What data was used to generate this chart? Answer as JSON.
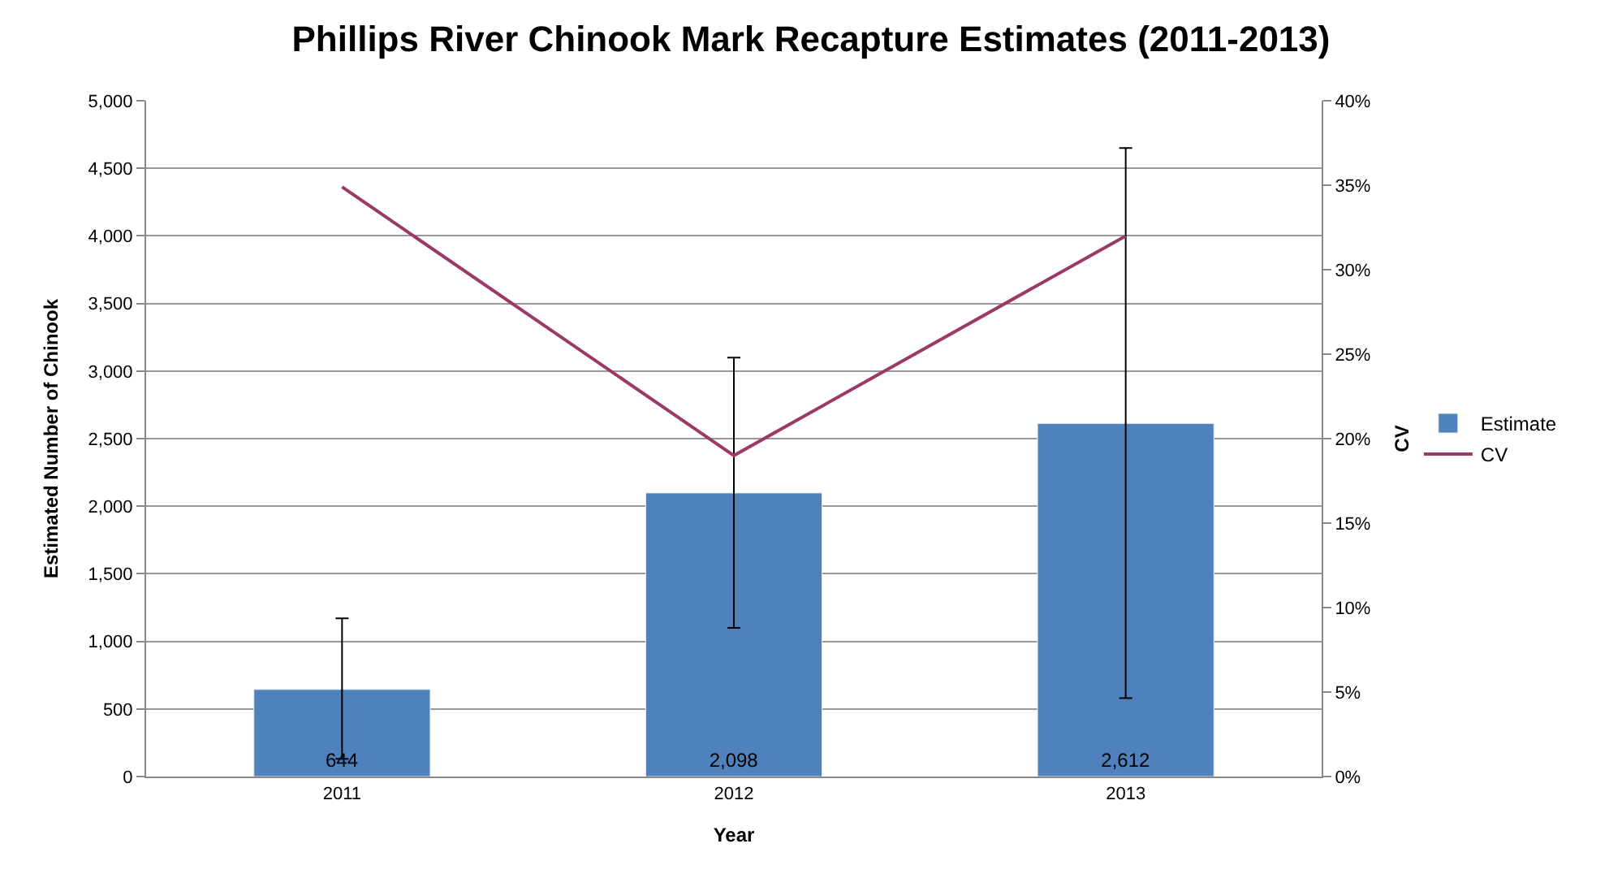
{
  "chart_data": {
    "type": "bar",
    "title": "Phillips River Chinook Mark Recapture Estimates (2011-2013)",
    "xlabel": "Year",
    "ylabel": "Estimated Number of Chinook",
    "y2label": "CV",
    "categories": [
      "2011",
      "2012",
      "2013"
    ],
    "series": [
      {
        "name": "Estimate",
        "color": "#4f81bd",
        "values": [
          644,
          2098,
          2612
        ],
        "errors": [
          [
            130,
            1170
          ],
          [
            1100,
            3100
          ],
          [
            580,
            4650
          ]
        ],
        "value_labels": [
          "644",
          "2,098",
          "2,612"
        ]
      },
      {
        "name": "CV",
        "type": "line",
        "axis": "y2",
        "color": "#9b3a66",
        "values": [
          34.9,
          19.0,
          32.0
        ]
      }
    ],
    "ylim": [
      0,
      5000
    ],
    "yticks": [
      0,
      {
        "value": 500,
        "label": "500"
      },
      {
        "value": 1000,
        "label": "1,000"
      },
      {
        "value": 1500,
        "label": "1,500"
      },
      {
        "value": 2000,
        "label": "2,000"
      },
      {
        "value": 2500,
        "label": "2,500"
      },
      {
        "value": 3000,
        "label": "3,000"
      },
      {
        "value": 3500,
        "label": "3,500"
      },
      {
        "value": 4000,
        "label": "4,000"
      },
      {
        "value": 4500,
        "label": "4,500"
      },
      {
        "value": 5000,
        "label": "5,000"
      }
    ],
    "y2lim": [
      0,
      40
    ],
    "y2ticks": [
      {
        "value": 0,
        "label": "0%"
      },
      {
        "value": 5,
        "label": "5%"
      },
      {
        "value": 10,
        "label": "10%"
      },
      {
        "value": 15,
        "label": "15%"
      },
      {
        "value": 20,
        "label": "20%"
      },
      {
        "value": 25,
        "label": "25%"
      },
      {
        "value": 30,
        "label": "30%"
      },
      {
        "value": 35,
        "label": "35%"
      },
      {
        "value": 40,
        "label": "40%"
      }
    ],
    "grid": "y",
    "legend": "right",
    "marker": "none",
    "line_style": "solid"
  }
}
